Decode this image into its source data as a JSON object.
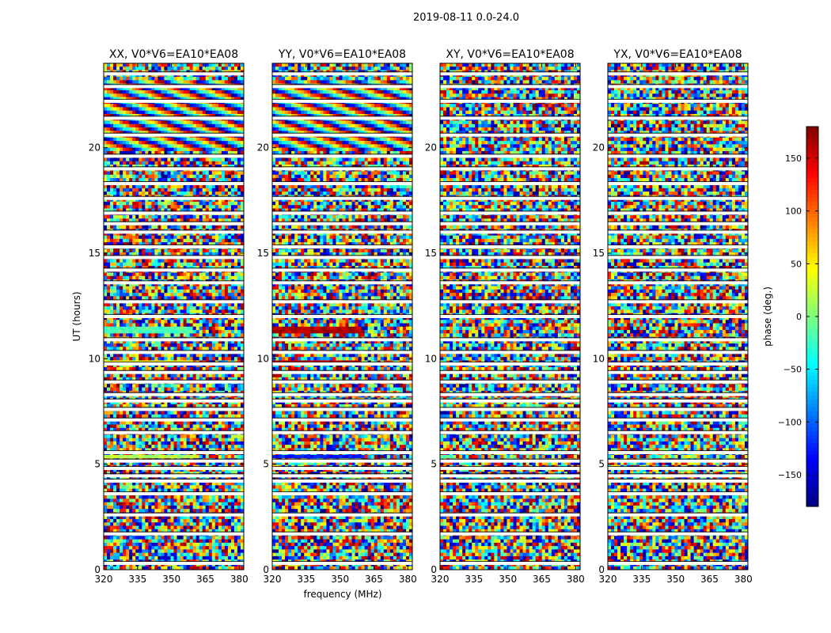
{
  "figure": {
    "suptitle": "2019-08-11 0.0-24.0",
    "ylabel": "UT (hours)",
    "xlabel": "frequency (MHz)"
  },
  "chart_data": {
    "type": "heatmap",
    "title": "2019-08-11 0.0-24.0",
    "xlabel": "frequency (MHz)",
    "ylabel": "UT (hours)",
    "xlim": [
      320,
      382
    ],
    "ylim": [
      0,
      24
    ],
    "xticks": [
      "320",
      "335",
      "350",
      "365",
      "380"
    ],
    "yticks": [
      "0",
      "5",
      "10",
      "15",
      "20"
    ],
    "panels": [
      {
        "title": "XX, V0*V6=EA10*EA08",
        "polarization": "XX",
        "baseline": "V0*V6=EA10*EA08"
      },
      {
        "title": "YY, V0*V6=EA10*EA08",
        "polarization": "YY",
        "baseline": "V0*V6=EA10*EA08"
      },
      {
        "title": "XY, V0*V6=EA10*EA08",
        "polarization": "XY",
        "baseline": "V0*V6=EA10*EA08"
      },
      {
        "title": "YX, V0*V6=EA10*EA08",
        "polarization": "YX",
        "baseline": "V0*V6=EA10*EA08"
      }
    ],
    "colorbar": {
      "label": "phase (deg.)",
      "range": [
        -180,
        180
      ],
      "ticks": [
        "150",
        "100",
        "50",
        "0",
        "−50",
        "−100",
        "−150"
      ],
      "colormap": "jet"
    },
    "flagged_gaps_hours": [
      0.3,
      1.7,
      2.6,
      3.6,
      4.2,
      4.45,
      4.8,
      5.15,
      5.55,
      6.5,
      7.1,
      7.6,
      8.0,
      8.3,
      8.9,
      9.35,
      9.75,
      10.3,
      10.9,
      12.0,
      12.7,
      13.6,
      14.2,
      14.8,
      15.3,
      16.0,
      16.4,
      16.9,
      17.6,
      18.3,
      19.0,
      19.6,
      20.6,
      21.4,
      22.2,
      22.9,
      23.5
    ],
    "notes": {
      "XX": "coherent phase fringes between ~20-23 h; smooth green/cyan bands near 11.3 h, 9.9 h, 5.4 h",
      "YY": "coherent fringes ~20-23 h; red bands near 11.3 h and 9.9 h, blue band near 5.4 h",
      "XY": "mostly noise-like phase",
      "YX": "mostly noise-like phase"
    }
  }
}
